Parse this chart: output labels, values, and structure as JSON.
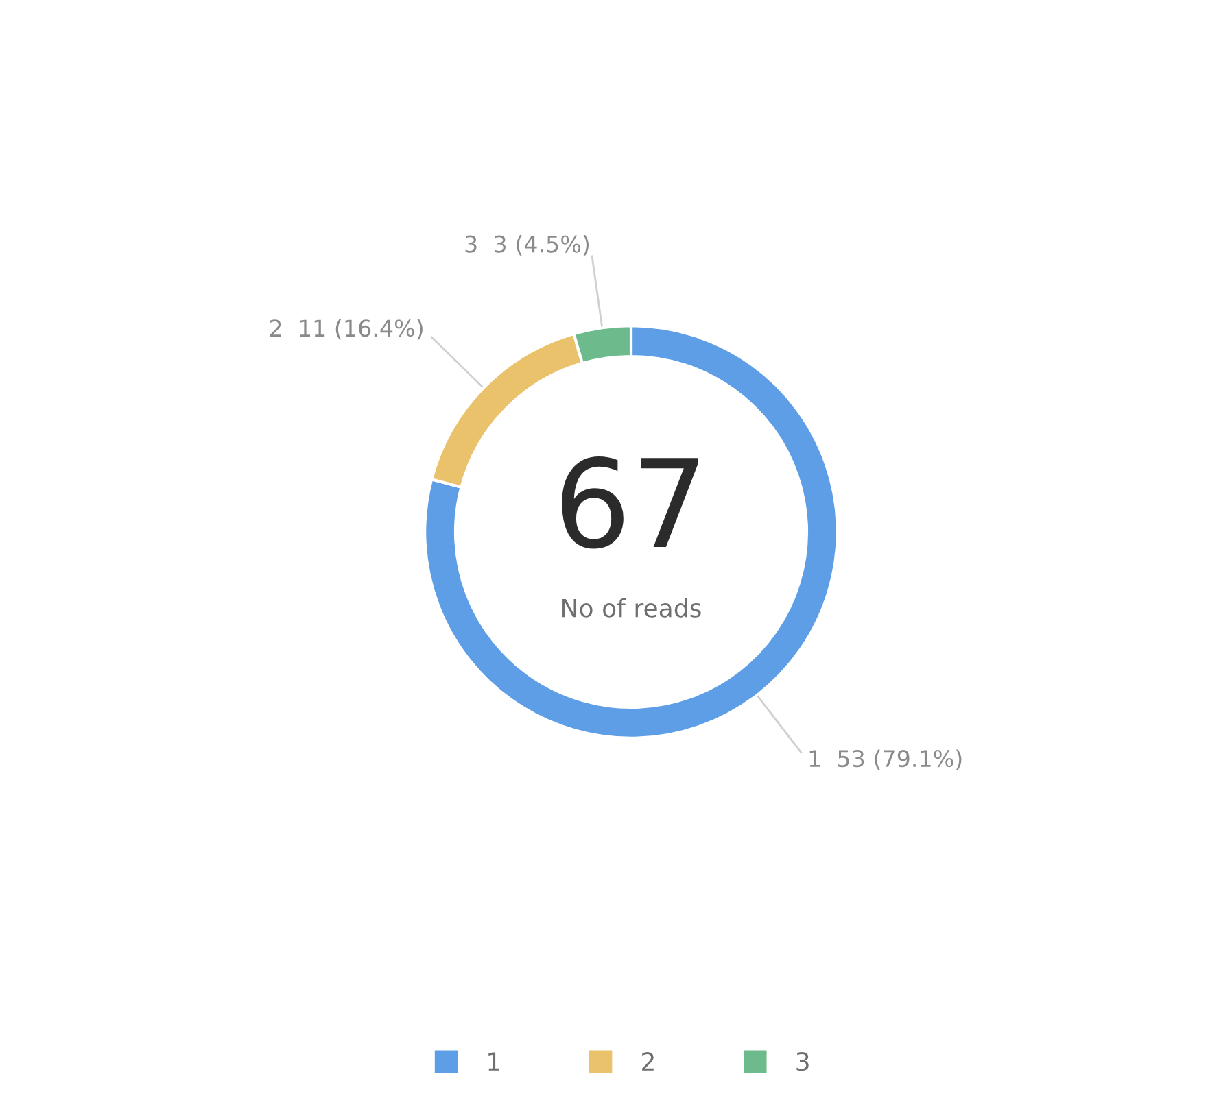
{
  "chart_data": {
    "type": "donut",
    "categories": [
      "1",
      "2",
      "3"
    ],
    "values": [
      53,
      11,
      3
    ],
    "colors": [
      "#5e9ee6",
      "#eac26c",
      "#6dbb8c"
    ],
    "value_labels": [
      "1  53 (79.1%)",
      "2  11 (16.4%)",
      "3  3 (4.5%)"
    ],
    "annotations": [
      "67",
      "No of reads"
    ],
    "legend": "bottom"
  }
}
